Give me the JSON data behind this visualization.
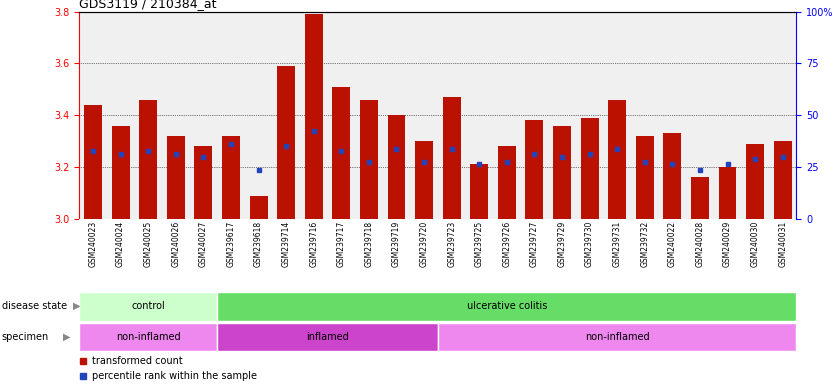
{
  "title": "GDS3119 / 210384_at",
  "samples": [
    "GSM240023",
    "GSM240024",
    "GSM240025",
    "GSM240026",
    "GSM240027",
    "GSM239617",
    "GSM239618",
    "GSM239714",
    "GSM239716",
    "GSM239717",
    "GSM239718",
    "GSM239719",
    "GSM239720",
    "GSM239723",
    "GSM239725",
    "GSM239726",
    "GSM239727",
    "GSM239729",
    "GSM239730",
    "GSM239731",
    "GSM239732",
    "GSM240022",
    "GSM240028",
    "GSM240029",
    "GSM240030",
    "GSM240031"
  ],
  "bar_values": [
    3.44,
    3.36,
    3.46,
    3.32,
    3.28,
    3.32,
    3.09,
    3.59,
    3.79,
    3.51,
    3.46,
    3.4,
    3.3,
    3.47,
    3.21,
    3.28,
    3.38,
    3.36,
    3.39,
    3.46,
    3.32,
    3.33,
    3.16,
    3.2,
    3.29,
    3.3
  ],
  "blue_values": [
    3.26,
    3.25,
    3.26,
    3.25,
    3.24,
    3.29,
    3.19,
    3.28,
    3.34,
    3.26,
    3.22,
    3.27,
    3.22,
    3.27,
    3.21,
    3.22,
    3.25,
    3.24,
    3.25,
    3.27,
    3.22,
    3.21,
    3.19,
    3.21,
    3.23,
    3.24
  ],
  "ylim_left": [
    3.0,
    3.8
  ],
  "ylim_right": [
    0,
    100
  ],
  "yticks_left": [
    3.0,
    3.2,
    3.4,
    3.6,
    3.8
  ],
  "yticks_right": [
    0,
    25,
    50,
    75,
    100
  ],
  "ytick_labels_right": [
    "0",
    "25",
    "50",
    "75",
    "100%"
  ],
  "bar_color": "#bb1100",
  "blue_color": "#2244bb",
  "disease_state_groups": [
    {
      "label": "control",
      "start": 0,
      "end": 5,
      "color": "#ccffcc"
    },
    {
      "label": "ulcerative colitis",
      "start": 5,
      "end": 26,
      "color": "#66dd66"
    }
  ],
  "specimen_groups": [
    {
      "label": "non-inflamed",
      "start": 0,
      "end": 5,
      "color": "#ee88ee"
    },
    {
      "label": "inflamed",
      "start": 5,
      "end": 13,
      "color": "#cc44cc"
    },
    {
      "label": "non-inflamed",
      "start": 13,
      "end": 26,
      "color": "#ee88ee"
    }
  ],
  "chart_bg": "#f0f0f0",
  "xtick_bg": "#d0d0d0",
  "title_fontsize": 9,
  "tick_fontsize": 7,
  "sample_fontsize": 5.5,
  "row_fontsize": 7,
  "legend_fontsize": 7
}
